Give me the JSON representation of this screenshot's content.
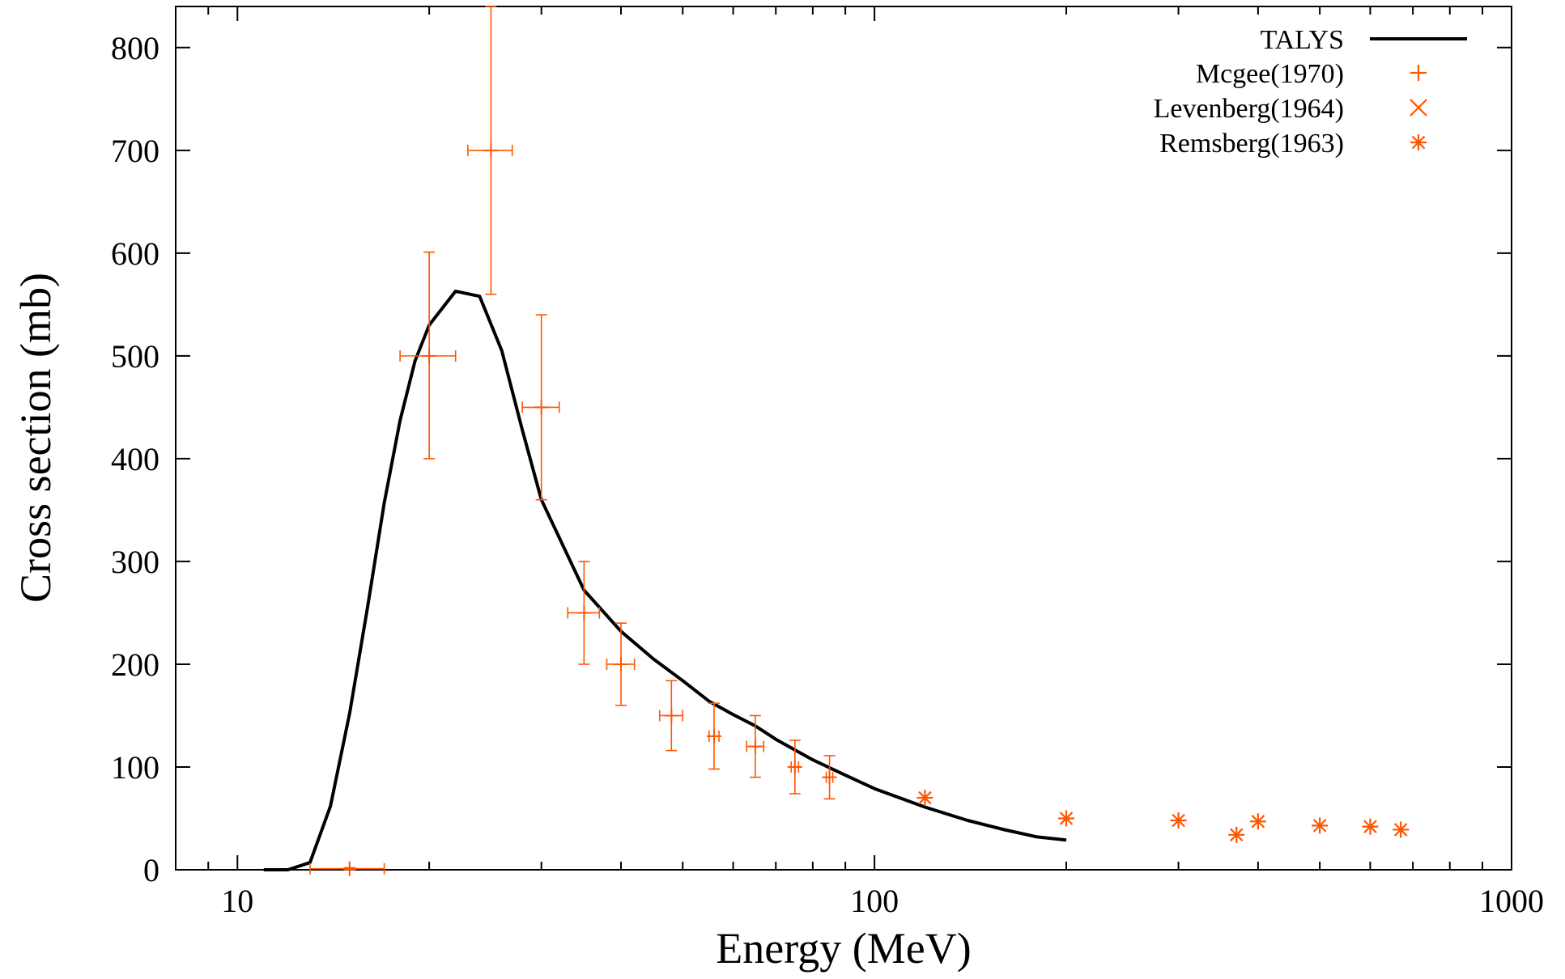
{
  "chart_data": {
    "type": "line",
    "xlabel": "Energy (MeV)",
    "ylabel": "Cross section (mb)",
    "xscale": "log",
    "xlim": [
      8,
      1000
    ],
    "ylim": [
      0,
      840
    ],
    "x_ticks": [
      10,
      100,
      1000
    ],
    "x_tick_labels": [
      "10",
      "100",
      "1000"
    ],
    "y_ticks": [
      0,
      100,
      200,
      300,
      400,
      500,
      600,
      700,
      800
    ],
    "y_tick_labels": [
      "0",
      "100",
      "200",
      "300",
      "400",
      "500",
      "600",
      "700",
      "800"
    ],
    "grid": false,
    "legend_position": "top-right",
    "colors": {
      "talys": "#000000",
      "experimental": "#ff5500"
    },
    "series": [
      {
        "name": "TALYS",
        "style": "line",
        "color": "#000000",
        "x": [
          11,
          12,
          13,
          14,
          15,
          16,
          17,
          18,
          19,
          20,
          22,
          24,
          26,
          28,
          30,
          35,
          40,
          45,
          50,
          55,
          60,
          65,
          70,
          80,
          90,
          100,
          120,
          140,
          160,
          180,
          200
        ],
        "y": [
          0,
          0,
          7,
          62,
          152,
          255,
          357,
          437,
          495,
          530,
          563,
          558,
          505,
          428,
          360,
          272,
          232,
          205,
          184,
          164,
          151,
          140,
          127,
          107,
          92,
          79,
          61,
          48,
          39,
          32,
          29
        ]
      },
      {
        "name": "Mcgee(1970)",
        "style": "errorbar",
        "marker": "plus",
        "color": "#ff5500",
        "points": [
          {
            "x": 15,
            "y": 1,
            "xerr": [
              13,
              17
            ],
            "yerr": [
              0,
              2
            ]
          },
          {
            "x": 20,
            "y": 500,
            "xerr": [
              18,
              22
            ],
            "yerr": [
              400,
              601
            ]
          },
          {
            "x": 25,
            "y": 700,
            "xerr": [
              23,
              27
            ],
            "yerr": [
              560,
              840
            ]
          },
          {
            "x": 30,
            "y": 450,
            "xerr": [
              28,
              32
            ],
            "yerr": [
              360,
              540
            ]
          },
          {
            "x": 35,
            "y": 250,
            "xerr": [
              33,
              37
            ],
            "yerr": [
              200,
              300
            ]
          },
          {
            "x": 40,
            "y": 200,
            "xerr": [
              38,
              42
            ],
            "yerr": [
              160,
              240
            ]
          },
          {
            "x": 48,
            "y": 150,
            "xerr": [
              46,
              50
            ],
            "yerr": [
              116,
              184
            ]
          },
          {
            "x": 56,
            "y": 130,
            "xerr": [
              55,
              57
            ],
            "yerr": [
              98,
              162
            ]
          },
          {
            "x": 65,
            "y": 120,
            "xerr": [
              63,
              67
            ],
            "yerr": [
              90,
              150
            ]
          },
          {
            "x": 75,
            "y": 100,
            "xerr": [
              74,
              76
            ],
            "yerr": [
              74,
              126
            ]
          },
          {
            "x": 85,
            "y": 90,
            "xerr": [
              84,
              86
            ],
            "yerr": [
              69,
              111
            ]
          }
        ]
      },
      {
        "name": "Levenberg(1964)",
        "style": "points",
        "marker": "cross",
        "color": "#ff5500",
        "points": []
      },
      {
        "name": "Remsberg(1963)",
        "style": "points",
        "marker": "star",
        "color": "#ff5500",
        "points": [
          {
            "x": 120,
            "y": 70
          },
          {
            "x": 200,
            "y": 50
          },
          {
            "x": 300,
            "y": 48
          },
          {
            "x": 370,
            "y": 34
          },
          {
            "x": 400,
            "y": 47
          },
          {
            "x": 500,
            "y": 43
          },
          {
            "x": 600,
            "y": 42
          },
          {
            "x": 670,
            "y": 39
          }
        ]
      }
    ]
  }
}
